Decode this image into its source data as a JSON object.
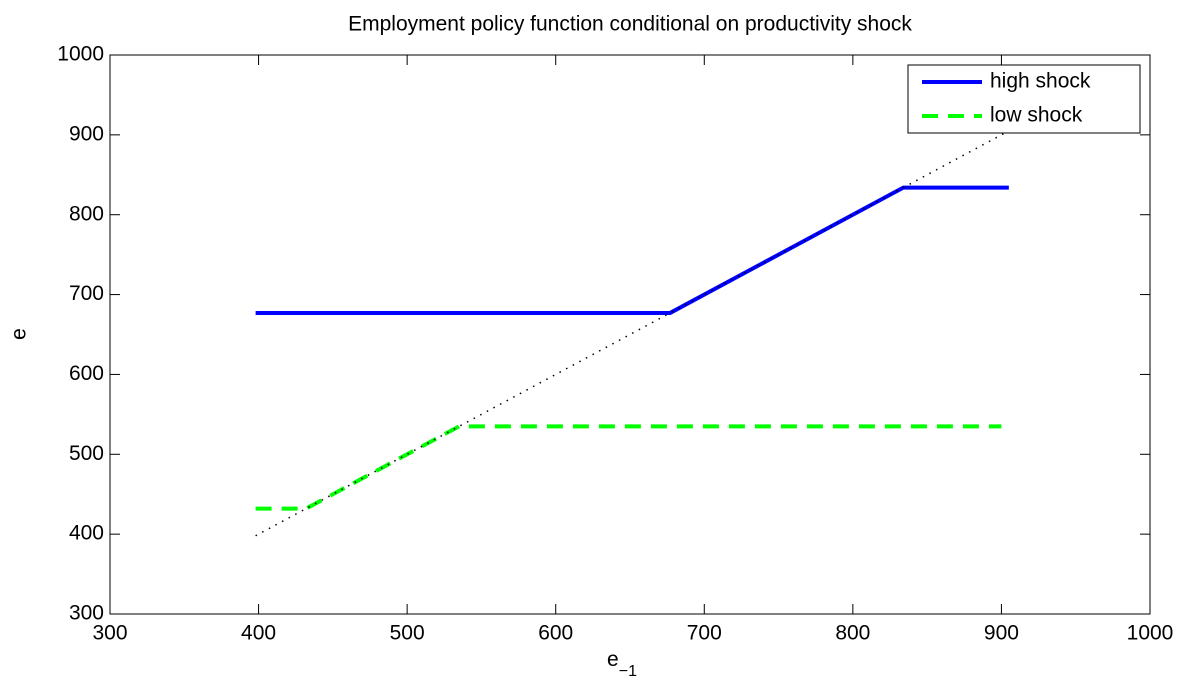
{
  "chart_data": {
    "type": "line",
    "title": "Employment policy function conditional on productivity shock",
    "xlabel": {
      "base": "e",
      "subscript": "−1"
    },
    "ylabel": "e",
    "xlim": [
      300,
      1000
    ],
    "ylim": [
      300,
      1000
    ],
    "xticks": [
      300,
      400,
      500,
      600,
      700,
      800,
      900,
      1000
    ],
    "yticks": [
      300,
      400,
      500,
      600,
      700,
      800,
      900,
      1000
    ],
    "grid": false,
    "legend": "top-right",
    "series": [
      {
        "name": "high shock",
        "color": "#0000ff",
        "line_style": "solid",
        "x": [
          398,
          677,
          834,
          905
        ],
        "values": [
          677,
          677,
          834,
          834
        ]
      },
      {
        "name": "low shock",
        "color": "#00ff00",
        "line_style": "dashed",
        "x": [
          398,
          432,
          535,
          900
        ],
        "values": [
          432,
          432,
          535,
          535
        ]
      },
      {
        "color": "#000000",
        "line_style": "dotted",
        "x": [
          398,
          905
        ],
        "values": [
          398,
          905
        ]
      }
    ]
  }
}
